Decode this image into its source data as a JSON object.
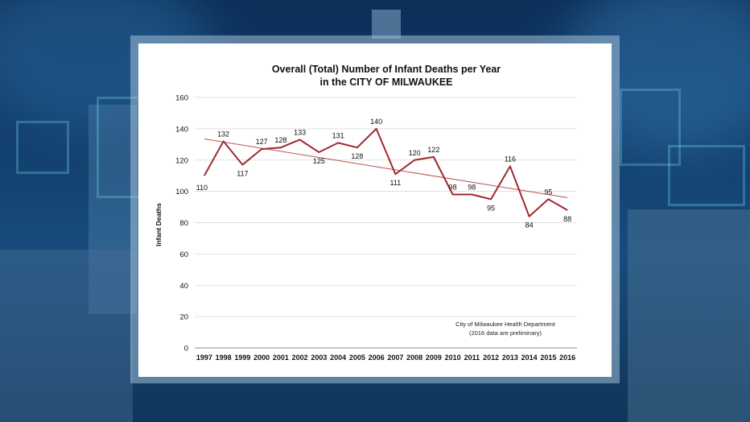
{
  "chart_data": {
    "type": "line",
    "title_line1": "Overall (Total) Number of Infant Deaths per Year",
    "title_line2": "in the CITY OF MILWAUKEE",
    "ylabel": "Infant Deaths",
    "xlabel": "",
    "ylim": [
      0,
      160
    ],
    "yticks": [
      0,
      20,
      40,
      60,
      80,
      100,
      120,
      140,
      160
    ],
    "grid": true,
    "categories": [
      "1997",
      "1998",
      "1999",
      "2000",
      "2001",
      "2002",
      "2003",
      "2004",
      "2005",
      "2006",
      "2007",
      "2008",
      "2009",
      "2010",
      "2011",
      "2012",
      "2013",
      "2014",
      "2015",
      "2016"
    ],
    "series": [
      {
        "values": [
          110,
          132,
          117,
          127,
          128,
          133,
          125,
          131,
          128,
          140,
          111,
          120,
          122,
          98,
          98,
          95,
          116,
          84,
          95,
          88
        ],
        "color": "#9e2a2f"
      }
    ],
    "trendline": {
      "start": 133.5,
      "end": 96,
      "color": "#c0504d"
    },
    "note_line1": "City of Milwaukee Health Department",
    "note_line2": "(2016 data are preliminary)"
  }
}
